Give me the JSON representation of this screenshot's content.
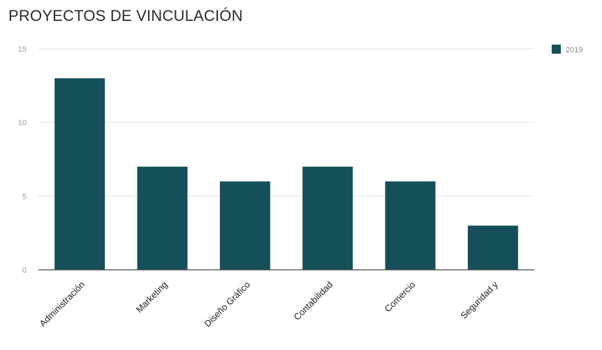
{
  "title": "PROYECTOS DE VINCULACIÓN",
  "chart_data": {
    "type": "bar",
    "categories": [
      "Administración",
      "Marketing",
      "Diseño Gráfico",
      "Contabilidad",
      "Comercio",
      "Seguridad y"
    ],
    "series": [
      {
        "name": "2019",
        "values": [
          13,
          7,
          6,
          7,
          6,
          3
        ],
        "color": "#154f5a"
      }
    ],
    "ylim": [
      0,
      15
    ],
    "yticks": [
      "0",
      "5",
      "10",
      "15"
    ],
    "grid": true,
    "legend_position": "top-right"
  }
}
